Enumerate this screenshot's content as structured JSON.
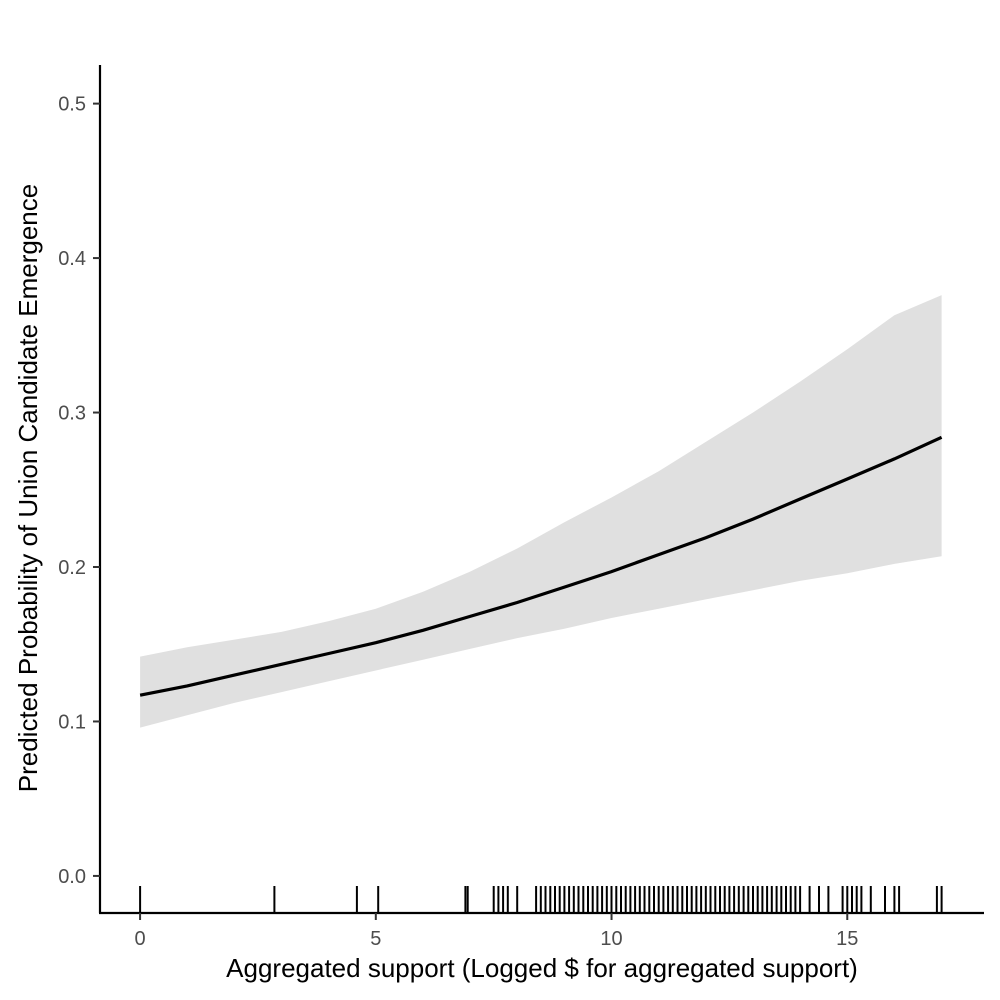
{
  "chart_data": {
    "type": "line",
    "title": "",
    "xlabel": "Aggregated support (Logged $ for aggregated support)",
    "ylabel": "Predicted Probability of Union Candidate Emergence",
    "xlim": [
      -0.85,
      17.9
    ],
    "ylim": [
      -0.024,
      0.525
    ],
    "x_ticks": [
      0,
      5,
      10,
      15
    ],
    "x_tick_labels": [
      "0",
      "5",
      "10",
      "15"
    ],
    "y_ticks": [
      0.0,
      0.1,
      0.2,
      0.3,
      0.4,
      0.5
    ],
    "y_tick_labels": [
      "0.0",
      "0.1",
      "0.2",
      "0.3",
      "0.4",
      "0.5"
    ],
    "grid": false,
    "legend": "none",
    "colors": {
      "line": "#000000",
      "ribbon": "#e0e0e0",
      "axis": "#000000",
      "tick_label": "#4d4d4d"
    },
    "series": [
      {
        "x": [
          0,
          1,
          2,
          3,
          4,
          5,
          6,
          7,
          8,
          9,
          10,
          11,
          12,
          13,
          14,
          15,
          16,
          17
        ],
        "y": [
          0.117,
          0.123,
          0.13,
          0.137,
          0.144,
          0.151,
          0.159,
          0.168,
          0.177,
          0.187,
          0.197,
          0.208,
          0.219,
          0.231,
          0.244,
          0.257,
          0.27,
          0.284
        ],
        "lower": [
          0.096,
          0.104,
          0.112,
          0.119,
          0.126,
          0.133,
          0.14,
          0.147,
          0.154,
          0.16,
          0.167,
          0.173,
          0.179,
          0.185,
          0.191,
          0.196,
          0.202,
          0.207
        ],
        "upper": [
          0.142,
          0.148,
          0.153,
          0.158,
          0.165,
          0.173,
          0.184,
          0.197,
          0.212,
          0.229,
          0.245,
          0.262,
          0.281,
          0.3,
          0.32,
          0.341,
          0.363,
          0.376
        ]
      }
    ],
    "rug_x": [
      0,
      2.85,
      4.6,
      5.05,
      6.9,
      6.95,
      7.5,
      7.6,
      7.7,
      7.8,
      8.0,
      8.4,
      8.5,
      8.6,
      8.7,
      8.8,
      8.9,
      9.0,
      9.1,
      9.2,
      9.3,
      9.4,
      9.5,
      9.6,
      9.7,
      9.8,
      9.9,
      10.0,
      10.1,
      10.2,
      10.3,
      10.4,
      10.5,
      10.6,
      10.7,
      10.8,
      10.9,
      11.0,
      11.1,
      11.2,
      11.3,
      11.4,
      11.5,
      11.6,
      11.7,
      11.8,
      11.9,
      12.0,
      12.1,
      12.2,
      12.3,
      12.4,
      12.5,
      12.6,
      12.7,
      12.8,
      12.9,
      13.0,
      13.1,
      13.2,
      13.3,
      13.4,
      13.5,
      13.6,
      13.7,
      13.8,
      13.9,
      14.0,
      14.2,
      14.4,
      14.6,
      14.9,
      15.0,
      15.1,
      15.2,
      15.3,
      15.5,
      15.8,
      16.0,
      16.1,
      16.9,
      17.0
    ]
  }
}
